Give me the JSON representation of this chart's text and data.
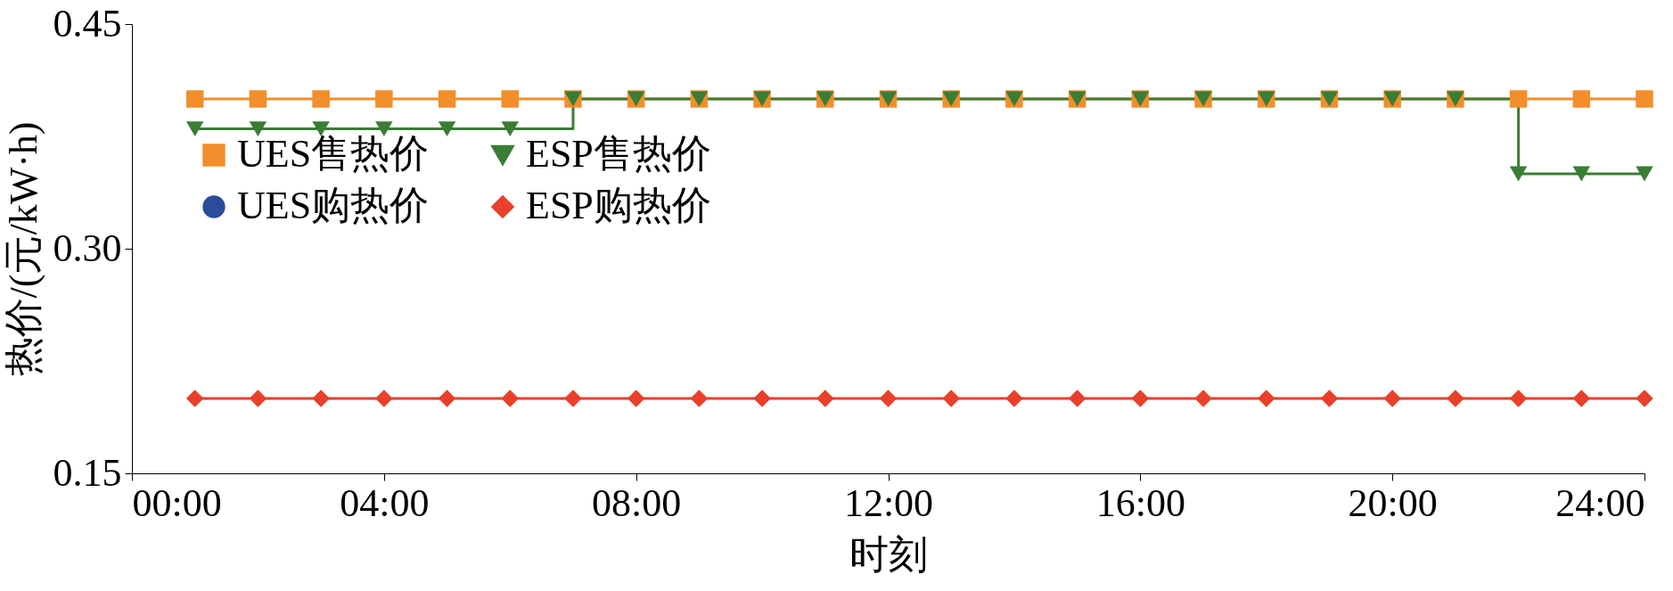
{
  "chart_data": {
    "type": "step",
    "xlabel": "时刻",
    "ylabel": "热价/(元/kW·h)",
    "x": [
      1,
      2,
      3,
      4,
      5,
      6,
      7,
      8,
      9,
      10,
      11,
      12,
      13,
      14,
      15,
      16,
      17,
      18,
      19,
      20,
      21,
      22,
      23,
      24
    ],
    "series": [
      {
        "name": "UES售热价",
        "color": "#f28e2b",
        "marker": "square",
        "values": [
          0.4,
          0.4,
          0.4,
          0.4,
          0.4,
          0.4,
          0.4,
          0.4,
          0.4,
          0.4,
          0.4,
          0.4,
          0.4,
          0.4,
          0.4,
          0.4,
          0.4,
          0.4,
          0.4,
          0.4,
          0.4,
          0.4,
          0.4,
          0.4
        ]
      },
      {
        "name": "UES购热价",
        "color": "#2b4c9b",
        "marker": "circle",
        "values": [
          null,
          null,
          null,
          null,
          null,
          null,
          null,
          null,
          null,
          null,
          null,
          null,
          null,
          null,
          null,
          null,
          null,
          null,
          null,
          null,
          null,
          null,
          null,
          null
        ]
      },
      {
        "name": "ESP售热价",
        "color": "#3a7d35",
        "marker": "triangle",
        "values": [
          0.38,
          0.38,
          0.38,
          0.38,
          0.38,
          0.38,
          0.4,
          0.4,
          0.4,
          0.4,
          0.4,
          0.4,
          0.4,
          0.4,
          0.4,
          0.4,
          0.4,
          0.4,
          0.4,
          0.4,
          0.4,
          0.35,
          0.35,
          0.35
        ]
      },
      {
        "name": "ESP购热价",
        "color": "#e8402a",
        "marker": "diamond",
        "values": [
          0.2,
          0.2,
          0.2,
          0.2,
          0.2,
          0.2,
          0.2,
          0.2,
          0.2,
          0.2,
          0.2,
          0.2,
          0.2,
          0.2,
          0.2,
          0.2,
          0.2,
          0.2,
          0.2,
          0.2,
          0.2,
          0.2,
          0.2,
          0.2
        ]
      }
    ],
    "xlim": [
      0,
      24
    ],
    "xticks": [
      {
        "value": 0,
        "label": "00:00"
      },
      {
        "value": 4,
        "label": "04:00"
      },
      {
        "value": 8,
        "label": "08:00"
      },
      {
        "value": 12,
        "label": "12:00"
      },
      {
        "value": 16,
        "label": "16:00"
      },
      {
        "value": 20,
        "label": "20:00"
      },
      {
        "value": 24,
        "label": "24:00"
      }
    ],
    "ylim": [
      0.15,
      0.45
    ],
    "yticks": [
      {
        "value": 0.15,
        "label": "0.15"
      },
      {
        "value": 0.3,
        "label": "0.30"
      },
      {
        "value": 0.45,
        "label": "0.45"
      }
    ],
    "grid": false,
    "legend": "left",
    "line_style": "solid"
  }
}
